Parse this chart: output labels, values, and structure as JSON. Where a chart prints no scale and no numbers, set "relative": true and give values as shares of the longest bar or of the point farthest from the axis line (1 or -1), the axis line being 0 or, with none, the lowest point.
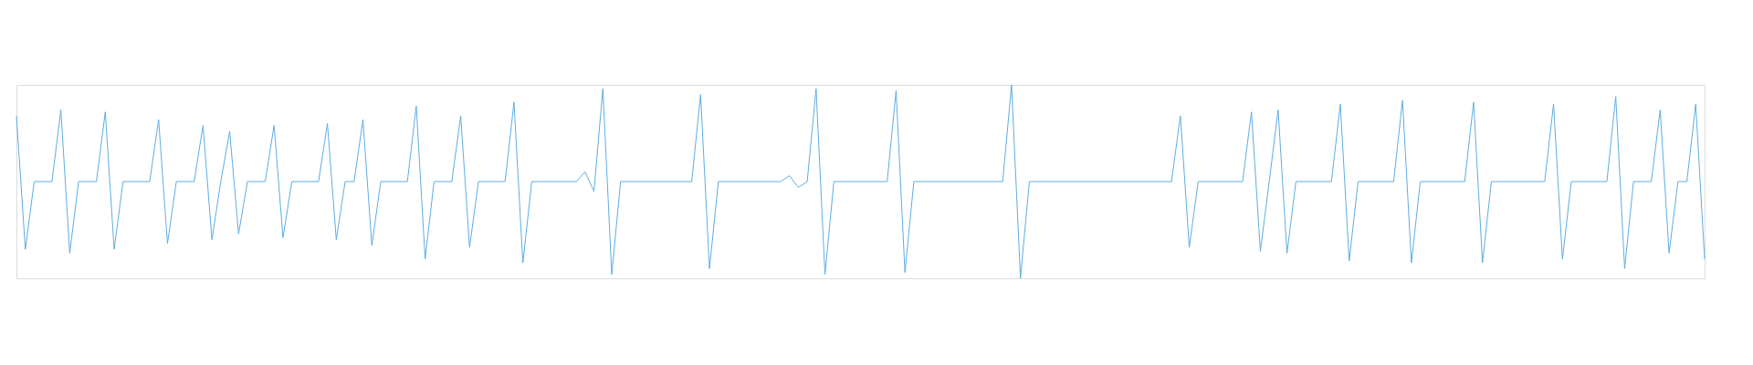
{
  "chart_data": {
    "type": "line",
    "relative": true,
    "grid": false,
    "legend": false,
    "line_style": "solid",
    "marker": "none",
    "categories": [
      null,
      null,
      null,
      null,
      null,
      null,
      null,
      null,
      null,
      null,
      null,
      null,
      null,
      null,
      null,
      null,
      null,
      null,
      null,
      null,
      null,
      null,
      null,
      null,
      null,
      null,
      null,
      null,
      null,
      null,
      null,
      null,
      null,
      null,
      null,
      null,
      null,
      null,
      null,
      null,
      null,
      null,
      null,
      null,
      null,
      null,
      null,
      null,
      null,
      null,
      null,
      null,
      null,
      null,
      null,
      null,
      null,
      null,
      null,
      null,
      null,
      null,
      null,
      null,
      null,
      null,
      null,
      null,
      null,
      null,
      null,
      null,
      null,
      null,
      null,
      null,
      null,
      null,
      null,
      null,
      null,
      null,
      null,
      null,
      null,
      null,
      null,
      null,
      null,
      null,
      null,
      null,
      null,
      null,
      null,
      null,
      null,
      null,
      null,
      null,
      null,
      null,
      null,
      null,
      null,
      null,
      null,
      null,
      null,
      null,
      null,
      null,
      null,
      null,
      null,
      null,
      null,
      null,
      null,
      null,
      null,
      null,
      null,
      null,
      null,
      null,
      null,
      null,
      null,
      null,
      null,
      null,
      null,
      null,
      null,
      null,
      null,
      null,
      null,
      null,
      null,
      null,
      null,
      null,
      null,
      null,
      null,
      null,
      null,
      null,
      null,
      null,
      null,
      null,
      null,
      null,
      null,
      null,
      null,
      null,
      null,
      null,
      null,
      null,
      null,
      null,
      null,
      null,
      null,
      null,
      null,
      null,
      null,
      null,
      null,
      null,
      null,
      null,
      null,
      null,
      null,
      null,
      null,
      null,
      null,
      null,
      null,
      null,
      null,
      null,
      null
    ],
    "series": [
      {
        "color": "#5dade2",
        "values": [
          0.84,
          0.15,
          0.5,
          0.5,
          0.5,
          0.87,
          0.13,
          0.5,
          0.5,
          0.5,
          0.86,
          0.15,
          0.5,
          0.5,
          0.5,
          0.5,
          0.82,
          0.18,
          0.5,
          0.5,
          0.5,
          0.79,
          0.2,
          0.5,
          0.76,
          0.23,
          0.5,
          0.5,
          0.5,
          0.79,
          0.21,
          0.5,
          0.5,
          0.5,
          0.5,
          0.8,
          0.2,
          0.5,
          0.5,
          0.82,
          0.17,
          0.5,
          0.5,
          0.5,
          0.5,
          0.89,
          0.1,
          0.5,
          0.5,
          0.5,
          0.84,
          0.16,
          0.5,
          0.5,
          0.5,
          0.5,
          0.91,
          0.08,
          0.5,
          0.5,
          0.5,
          0.5,
          0.5,
          0.5,
          0.55,
          0.45,
          0.98,
          0.02,
          0.5,
          0.5,
          0.5,
          0.5,
          0.5,
          0.5,
          0.5,
          0.5,
          0.5,
          0.95,
          0.05,
          0.5,
          0.5,
          0.5,
          0.5,
          0.5,
          0.5,
          0.5,
          0.5,
          0.53,
          0.47,
          0.5,
          0.98,
          0.02,
          0.5,
          0.5,
          0.5,
          0.5,
          0.5,
          0.5,
          0.5,
          0.97,
          0.03,
          0.5,
          0.5,
          0.5,
          0.5,
          0.5,
          0.5,
          0.5,
          0.5,
          0.5,
          0.5,
          0.5,
          1,
          0,
          0.5,
          0.5,
          0.5,
          0.5,
          0.5,
          0.5,
          0.5,
          0.5,
          0.5,
          0.5,
          0.5,
          0.5,
          0.5,
          0.5,
          0.5,
          0.5,
          0.5,
          0.84,
          0.16,
          0.5,
          0.5,
          0.5,
          0.5,
          0.5,
          0.5,
          0.86,
          0.14,
          0.5,
          0.87,
          0.13,
          0.5,
          0.5,
          0.5,
          0.5,
          0.5,
          0.9,
          0.09,
          0.5,
          0.5,
          0.5,
          0.5,
          0.5,
          0.92,
          0.08,
          0.5,
          0.5,
          0.5,
          0.5,
          0.5,
          0.5,
          0.91,
          0.08,
          0.5,
          0.5,
          0.5,
          0.5,
          0.5,
          0.5,
          0.5,
          0.9,
          0.1,
          0.5,
          0.5,
          0.5,
          0.5,
          0.5,
          0.94,
          0.05,
          0.5,
          0.5,
          0.5,
          0.87,
          0.13,
          0.5,
          0.5,
          0.9,
          0.1
        ]
      }
    ]
  }
}
